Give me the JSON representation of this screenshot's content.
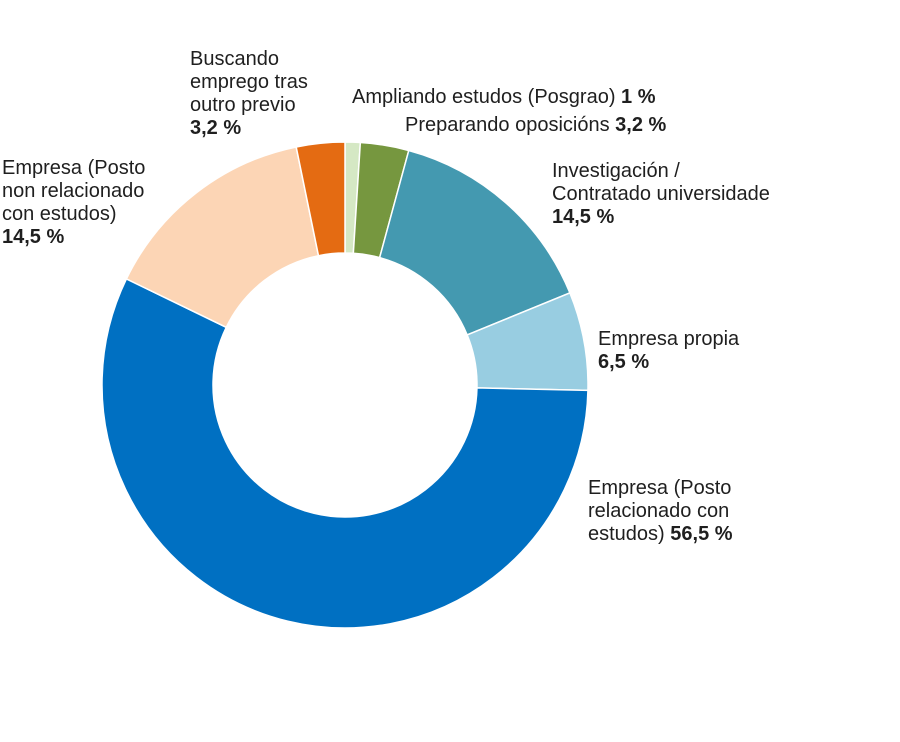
{
  "chart_data": {
    "type": "pie",
    "variant": "donut",
    "title": "",
    "slices": [
      {
        "label_lines": [
          "Ampliando estudos (Posgrao)"
        ],
        "value_text": "1 %",
        "value": 1.0,
        "color": "#d5e8c4"
      },
      {
        "label_lines": [
          "Preparando oposicións"
        ],
        "value_text": "3,2 %",
        "value": 3.2,
        "color": "#76973f"
      },
      {
        "label_lines": [
          "Investigación /",
          "Contratado universidade"
        ],
        "value_text": "14,5 %",
        "value": 14.5,
        "color": "#4499b0"
      },
      {
        "label_lines": [
          "Empresa propia"
        ],
        "value_text": "6,5 %",
        "value": 6.5,
        "color": "#98cde1"
      },
      {
        "label_lines": [
          "Empresa (Posto",
          "relacionado con",
          "estudos)"
        ],
        "value_text": "56,5 %",
        "value": 56.5,
        "color": "#0070c2"
      },
      {
        "label_lines": [
          "Empresa (Posto",
          "non relacionado",
          "con estudos)"
        ],
        "value_text": "14,5 %",
        "value": 14.5,
        "color": "#fcd5b5"
      },
      {
        "label_lines": [
          "Buscando",
          "emprego tras",
          "outro previo"
        ],
        "value_text": "3,2 %",
        "value": 3.2,
        "color": "#e46b12"
      }
    ]
  }
}
